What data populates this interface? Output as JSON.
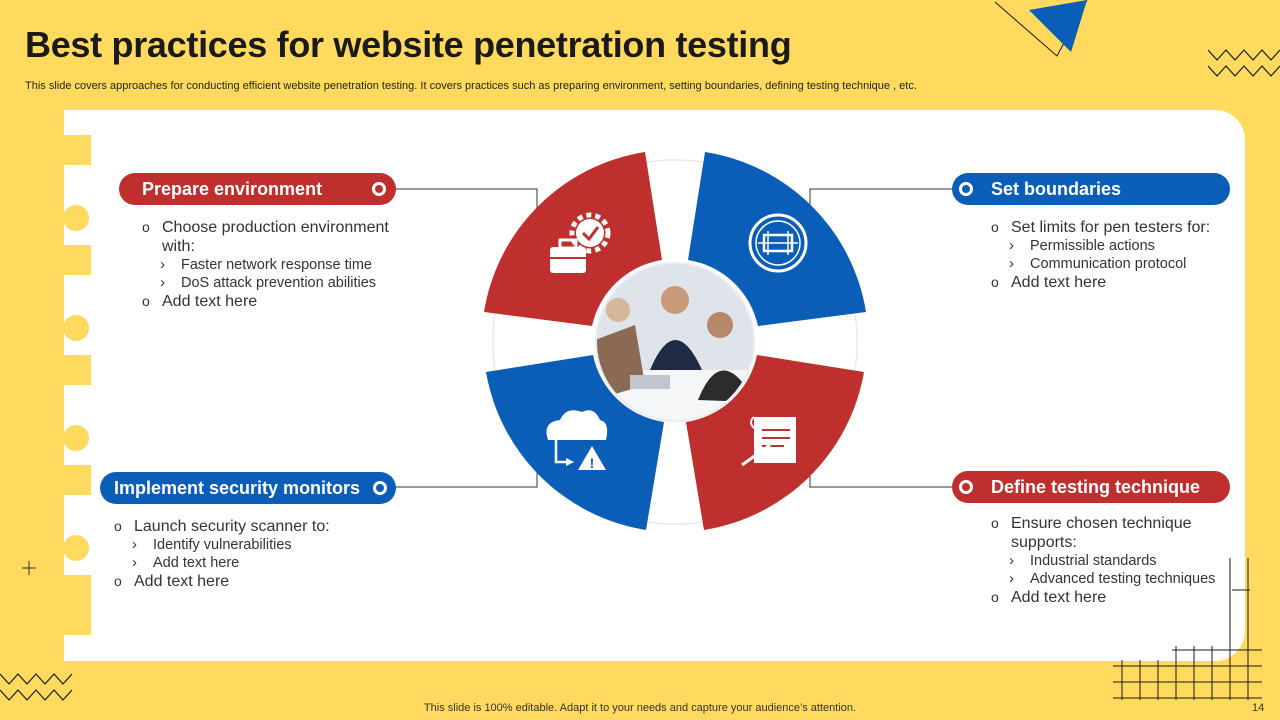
{
  "title": "Best practices for website penetration testing",
  "subtitle": "This slide covers approaches for conducting efficient website penetration testing. It covers practices such as preparing environment, setting boundaries, defining testing technique , etc.",
  "colors": {
    "background": "#FFDA5F",
    "red": "#BE2F2D",
    "blue": "#0B5EB8",
    "panel": "#FFFFFF"
  },
  "sections": {
    "prepare": {
      "heading": "Prepare environment",
      "icon": "toolbox-gear-icon",
      "b1": "Choose production environment",
      "b1_cont": "with:",
      "s1": "Faster network response time",
      "s2": "DoS attack prevention abilities",
      "b2": "Add text here"
    },
    "boundaries": {
      "heading": "Set boundaries",
      "icon": "boundary-frame-icon",
      "b1": "Set limits for pen testers for:",
      "s1": "Permissible actions",
      "s2": "Communication protocol",
      "b2": "Add text here"
    },
    "monitors": {
      "heading": "Implement security monitors",
      "icon": "cloud-warning-icon",
      "b1": "Launch security scanner to:",
      "s1": "Identify vulnerabilities",
      "s2": "Add text here",
      "b2": "Add text here"
    },
    "technique": {
      "heading": "Define testing technique",
      "icon": "document-pen-icon",
      "b1": "Ensure chosen technique",
      "b1_cont": "supports:",
      "s1": "Industrial standards",
      "s2": "Advanced testing techniques",
      "b2": "Add text here"
    }
  },
  "center_image": "business-team-photo",
  "footer": "This slide is 100% editable. Adapt it to your needs and capture your audience’s attention.",
  "page_number": "14"
}
